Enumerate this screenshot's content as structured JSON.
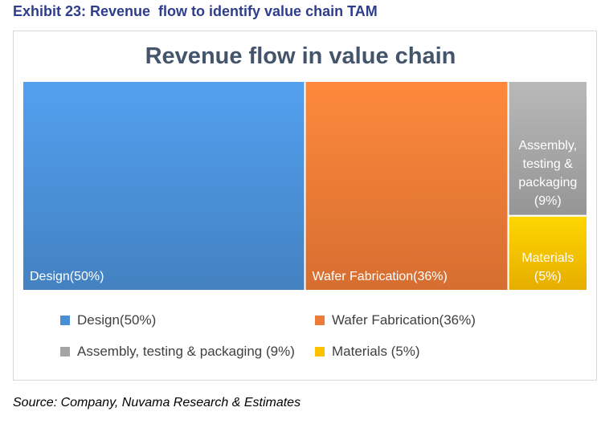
{
  "exhibit_title": "Exhibit 23: Revenue  flow to identify value chain TAM",
  "source": "Source: Company, Nuvama Research & Estimates",
  "colors": {
    "title": "#2e3d8c",
    "chart_title": "#44546a",
    "Design": "#4a8fd6",
    "Wafer Fabrication": "#ed7a36",
    "Assembly": "#a5a5a5",
    "Materials": "#ffc000"
  },
  "chart_data": {
    "type": "treemap",
    "title": "Revenue flow in value chain",
    "items": [
      {
        "name": "Design",
        "value": 50,
        "label": "Design(50%)",
        "legend": "Design(50%)",
        "color": "#4a8fd6"
      },
      {
        "name": "Wafer Fabrication",
        "value": 36,
        "label": "Wafer Fabrication(36%)",
        "legend": "Wafer Fabrication(36%)",
        "color": "#ed7a36"
      },
      {
        "name": "Assembly, testing & packaging",
        "value": 9,
        "label_lines": [
          "Assembly,",
          "testing &",
          "packaging",
          "(9%)"
        ],
        "legend": "Assembly, testing & packaging (9%)",
        "color": "#a5a5a5"
      },
      {
        "name": "Materials",
        "value": 5,
        "label_lines": [
          "Materials",
          "(5%)"
        ],
        "legend": "Materials (5%)",
        "color": "#ffc000"
      }
    ],
    "legend_position": "bottom"
  }
}
